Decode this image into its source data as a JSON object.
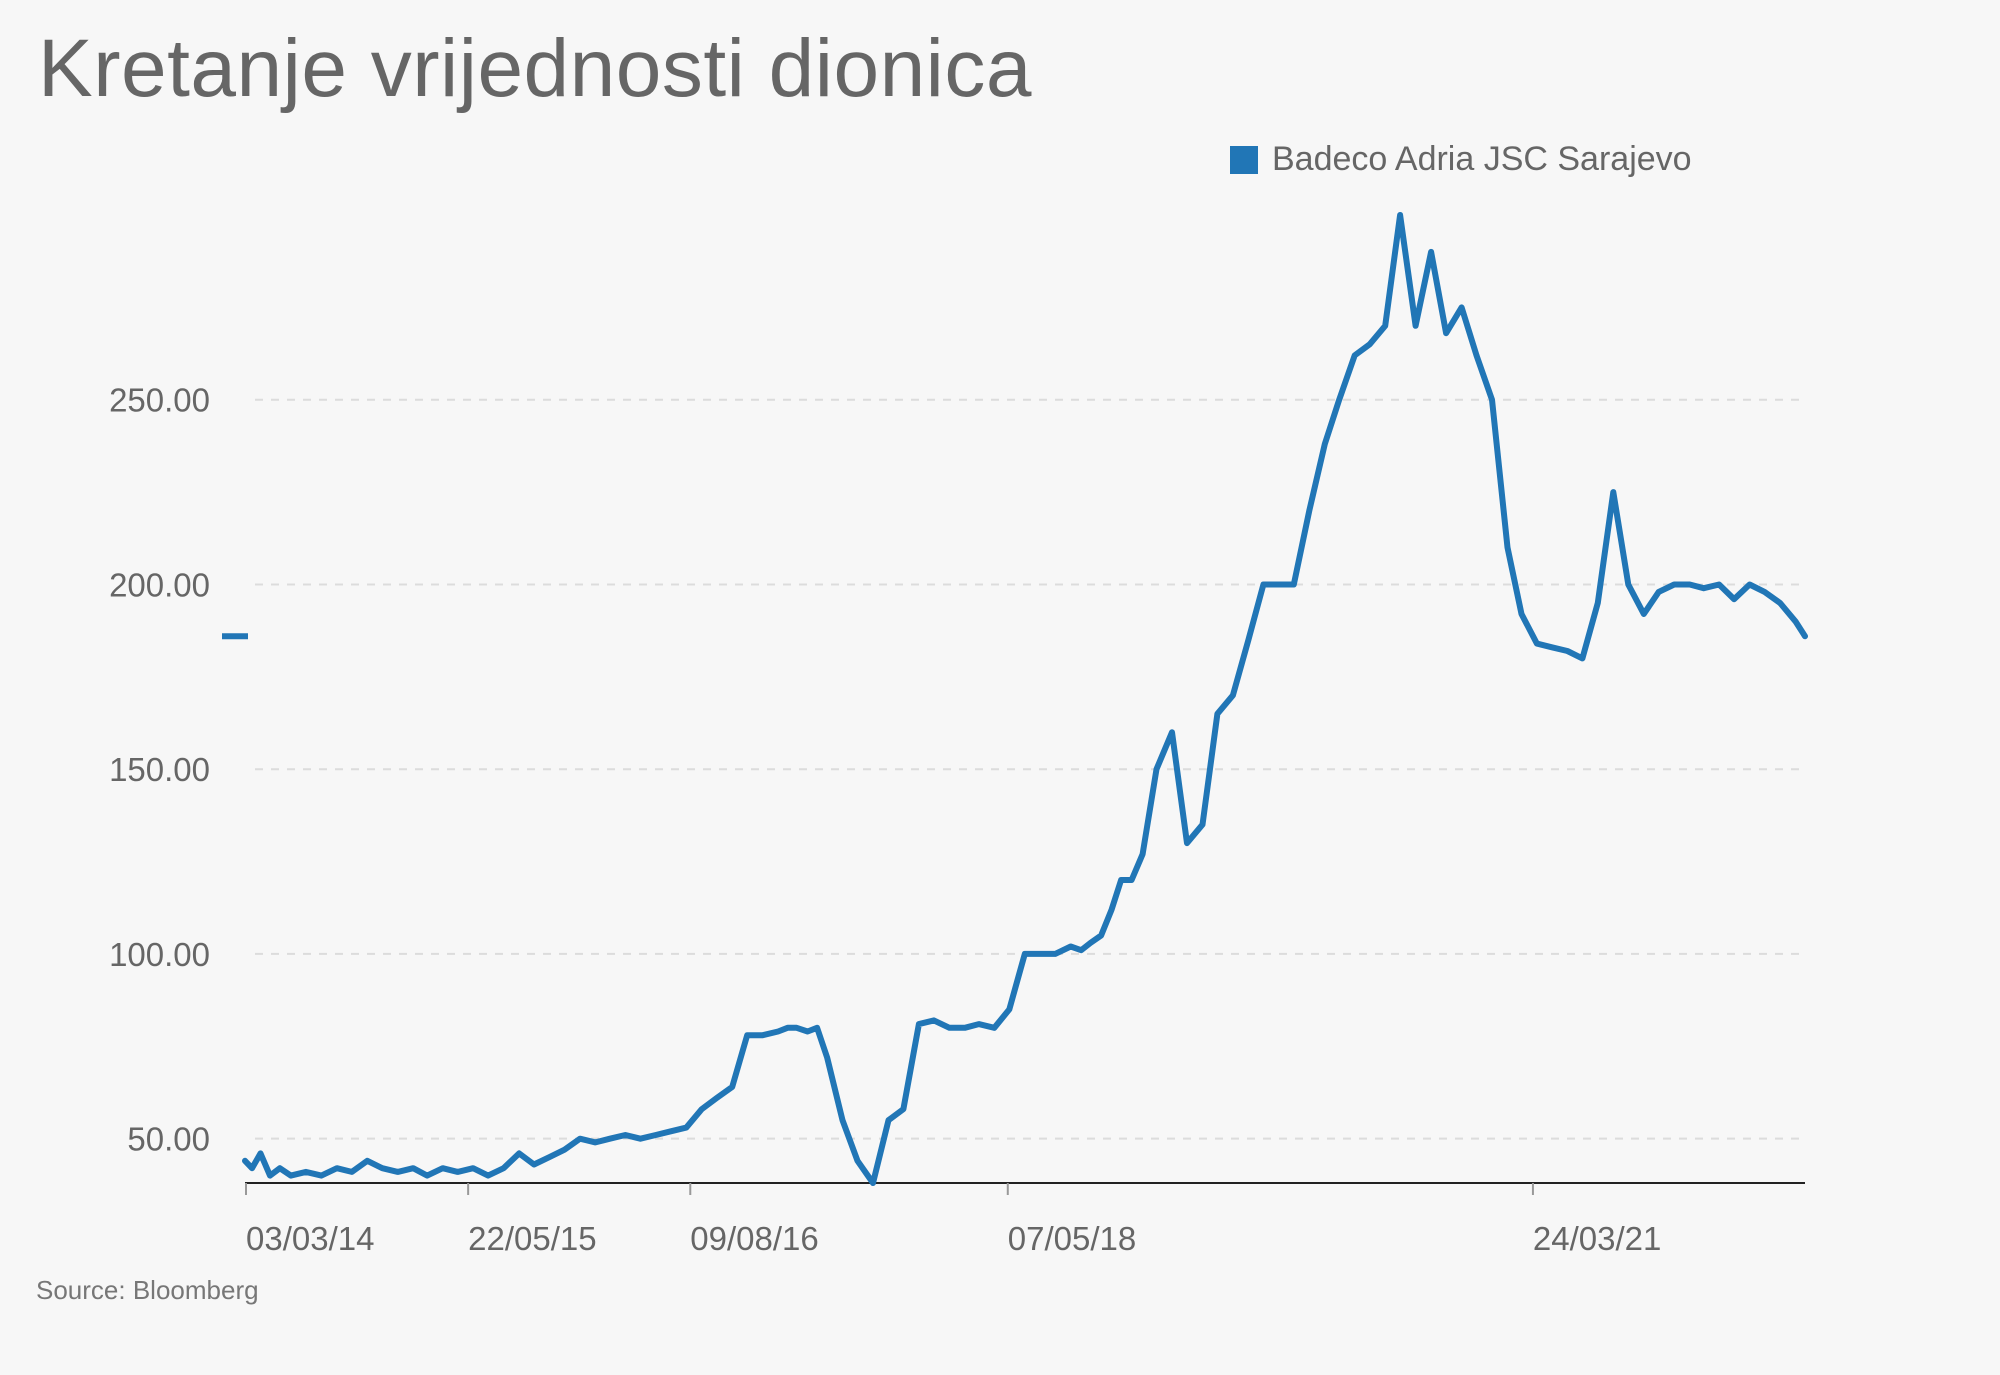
{
  "title": "Kretanje vrijednosti dionica",
  "source": "Source: Bloomberg",
  "legend": {
    "label": "Badeco Adria JSC Sarajevo",
    "color": "#2176b6"
  },
  "chart_data": {
    "type": "line",
    "title": "Kretanje vrijednosti dionica",
    "xlabel": "",
    "ylabel": "",
    "ylim": [
      38,
      300
    ],
    "xlim": [
      "2014-03-01",
      "2022-09-20"
    ],
    "grid": "horizontal dashed",
    "legend_position": "top-right",
    "x_ticks": [
      {
        "date": "2014-03-03",
        "label": "03/03/14"
      },
      {
        "date": "2015-05-22",
        "label": "22/05/15"
      },
      {
        "date": "2016-08-09",
        "label": "09/08/16"
      },
      {
        "date": "2018-05-07",
        "label": "07/05/18"
      },
      {
        "date": "2021-03-24",
        "label": "24/03/21"
      }
    ],
    "y_ticks": [
      {
        "value": 50,
        "label": "50.00"
      },
      {
        "value": 100,
        "label": "100.00"
      },
      {
        "value": 150,
        "label": "150.00"
      },
      {
        "value": 200,
        "label": "200.00"
      },
      {
        "value": 250,
        "label": "250.00"
      }
    ],
    "series": [
      {
        "name": "Badeco Adria JSC Sarajevo",
        "color": "#2176b6",
        "x": [
          "2014-03-01",
          "2014-03-15",
          "2014-04-01",
          "2014-04-20",
          "2014-05-10",
          "2014-06-01",
          "2014-07-01",
          "2014-08-01",
          "2014-09-01",
          "2014-10-01",
          "2014-11-01",
          "2014-12-01",
          "2015-01-01",
          "2015-02-01",
          "2015-03-01",
          "2015-04-01",
          "2015-05-01",
          "2015-06-01",
          "2015-07-01",
          "2015-08-01",
          "2015-09-01",
          "2015-10-01",
          "2015-11-01",
          "2015-12-01",
          "2016-01-01",
          "2016-02-01",
          "2016-03-01",
          "2016-04-01",
          "2016-05-01",
          "2016-06-01",
          "2016-07-01",
          "2016-08-01",
          "2016-09-01",
          "2016-10-01",
          "2016-11-01",
          "2016-12-01",
          "2017-01-01",
          "2017-02-01",
          "2017-02-20",
          "2017-03-10",
          "2017-04-01",
          "2017-04-20",
          "2017-05-10",
          "2017-06-10",
          "2017-07-10",
          "2017-08-10",
          "2017-09-10",
          "2017-10-10",
          "2017-11-10",
          "2017-12-10",
          "2018-01-10",
          "2018-02-10",
          "2018-03-10",
          "2018-04-10",
          "2018-05-10",
          "2018-06-10",
          "2018-07-10",
          "2018-08-10",
          "2018-09-10",
          "2018-10-01",
          "2018-10-20",
          "2018-11-10",
          "2018-12-01",
          "2018-12-20",
          "2019-01-10",
          "2019-02-01",
          "2019-03-01",
          "2019-04-01",
          "2019-05-01",
          "2019-06-01",
          "2019-07-01",
          "2019-08-01",
          "2019-09-01",
          "2019-10-01",
          "2019-11-01",
          "2019-12-01",
          "2020-01-01",
          "2020-02-01",
          "2020-03-01",
          "2020-04-01",
          "2020-05-01",
          "2020-06-01",
          "2020-07-01",
          "2020-08-01",
          "2020-09-01",
          "2020-10-01",
          "2020-11-01",
          "2020-12-01",
          "2021-01-01",
          "2021-02-01",
          "2021-03-01",
          "2021-04-01",
          "2021-05-01",
          "2021-06-01",
          "2021-07-01",
          "2021-08-01",
          "2021-09-01",
          "2021-10-01",
          "2021-11-01",
          "2021-12-01",
          "2022-01-01",
          "2022-02-01",
          "2022-03-01",
          "2022-04-01",
          "2022-05-01",
          "2022-06-01",
          "2022-07-01",
          "2022-08-01",
          "2022-09-01",
          "2022-09-20"
        ],
        "values": [
          44,
          42,
          46,
          40,
          42,
          40,
          41,
          40,
          42,
          41,
          44,
          42,
          41,
          42,
          40,
          42,
          41,
          42,
          40,
          42,
          46,
          43,
          45,
          47,
          50,
          49,
          50,
          51,
          50,
          51,
          52,
          53,
          58,
          61,
          64,
          78,
          78,
          79,
          80,
          80,
          79,
          80,
          72,
          55,
          44,
          38,
          55,
          58,
          81,
          82,
          80,
          80,
          81,
          80,
          85,
          100,
          100,
          100,
          102,
          101,
          103,
          105,
          112,
          120,
          120,
          127,
          150,
          160,
          130,
          135,
          165,
          170,
          185,
          200,
          200,
          200,
          220,
          238,
          250,
          262,
          265,
          270,
          300,
          270,
          290,
          268,
          275,
          262,
          250,
          210,
          192,
          184,
          183,
          182,
          180,
          195,
          225,
          200,
          192,
          198,
          200,
          200,
          199,
          200,
          196,
          200,
          198,
          195,
          190,
          186
        ]
      }
    ]
  }
}
